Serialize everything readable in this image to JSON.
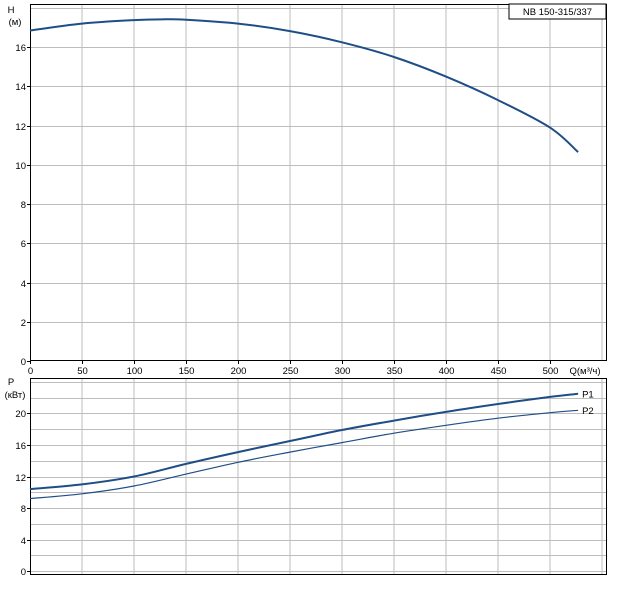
{
  "model_label": "NB 150-315/337",
  "chart_data": [
    {
      "type": "line",
      "ylabel_symbol": "H",
      "ylabel_unit": "(м)",
      "xlabel": "Q(м³/ч)",
      "xlim": [
        0,
        550
      ],
      "ylim": [
        0,
        18.2
      ],
      "x_ticks": [
        0,
        50,
        100,
        150,
        200,
        250,
        300,
        350,
        400,
        450,
        500
      ],
      "y_ticks": [
        0,
        2,
        4,
        6,
        8,
        10,
        12,
        14,
        16
      ],
      "grid": true,
      "series": [
        {
          "color": "#1f4e87",
          "x": [
            0,
            50,
            100,
            130,
            150,
            200,
            250,
            300,
            350,
            400,
            450,
            500,
            527
          ],
          "y": [
            16.85,
            17.2,
            17.38,
            17.42,
            17.4,
            17.2,
            16.82,
            16.25,
            15.5,
            14.5,
            13.3,
            11.9,
            10.65
          ]
        }
      ]
    },
    {
      "type": "line",
      "ylabel_symbol": "P",
      "ylabel_unit": "(кВт)",
      "xlim": [
        0,
        550
      ],
      "ylim": [
        -0.5,
        24.5
      ],
      "y_ticks": [
        0,
        4,
        8,
        12,
        16,
        20
      ],
      "grid": true,
      "series": [
        {
          "name": "P1",
          "color": "#1f4e87",
          "x": [
            0,
            50,
            100,
            150,
            200,
            250,
            300,
            350,
            400,
            450,
            500,
            527
          ],
          "y": [
            10.4,
            11.0,
            12.0,
            13.6,
            15.1,
            16.5,
            17.9,
            19.1,
            20.2,
            21.2,
            22.1,
            22.5
          ]
        },
        {
          "name": "P2",
          "color": "#1f4e87",
          "x": [
            0,
            50,
            100,
            150,
            200,
            250,
            300,
            350,
            400,
            450,
            500,
            527
          ],
          "y": [
            9.2,
            9.8,
            10.8,
            12.3,
            13.8,
            15.1,
            16.3,
            17.5,
            18.5,
            19.4,
            20.1,
            20.4
          ]
        }
      ]
    }
  ]
}
